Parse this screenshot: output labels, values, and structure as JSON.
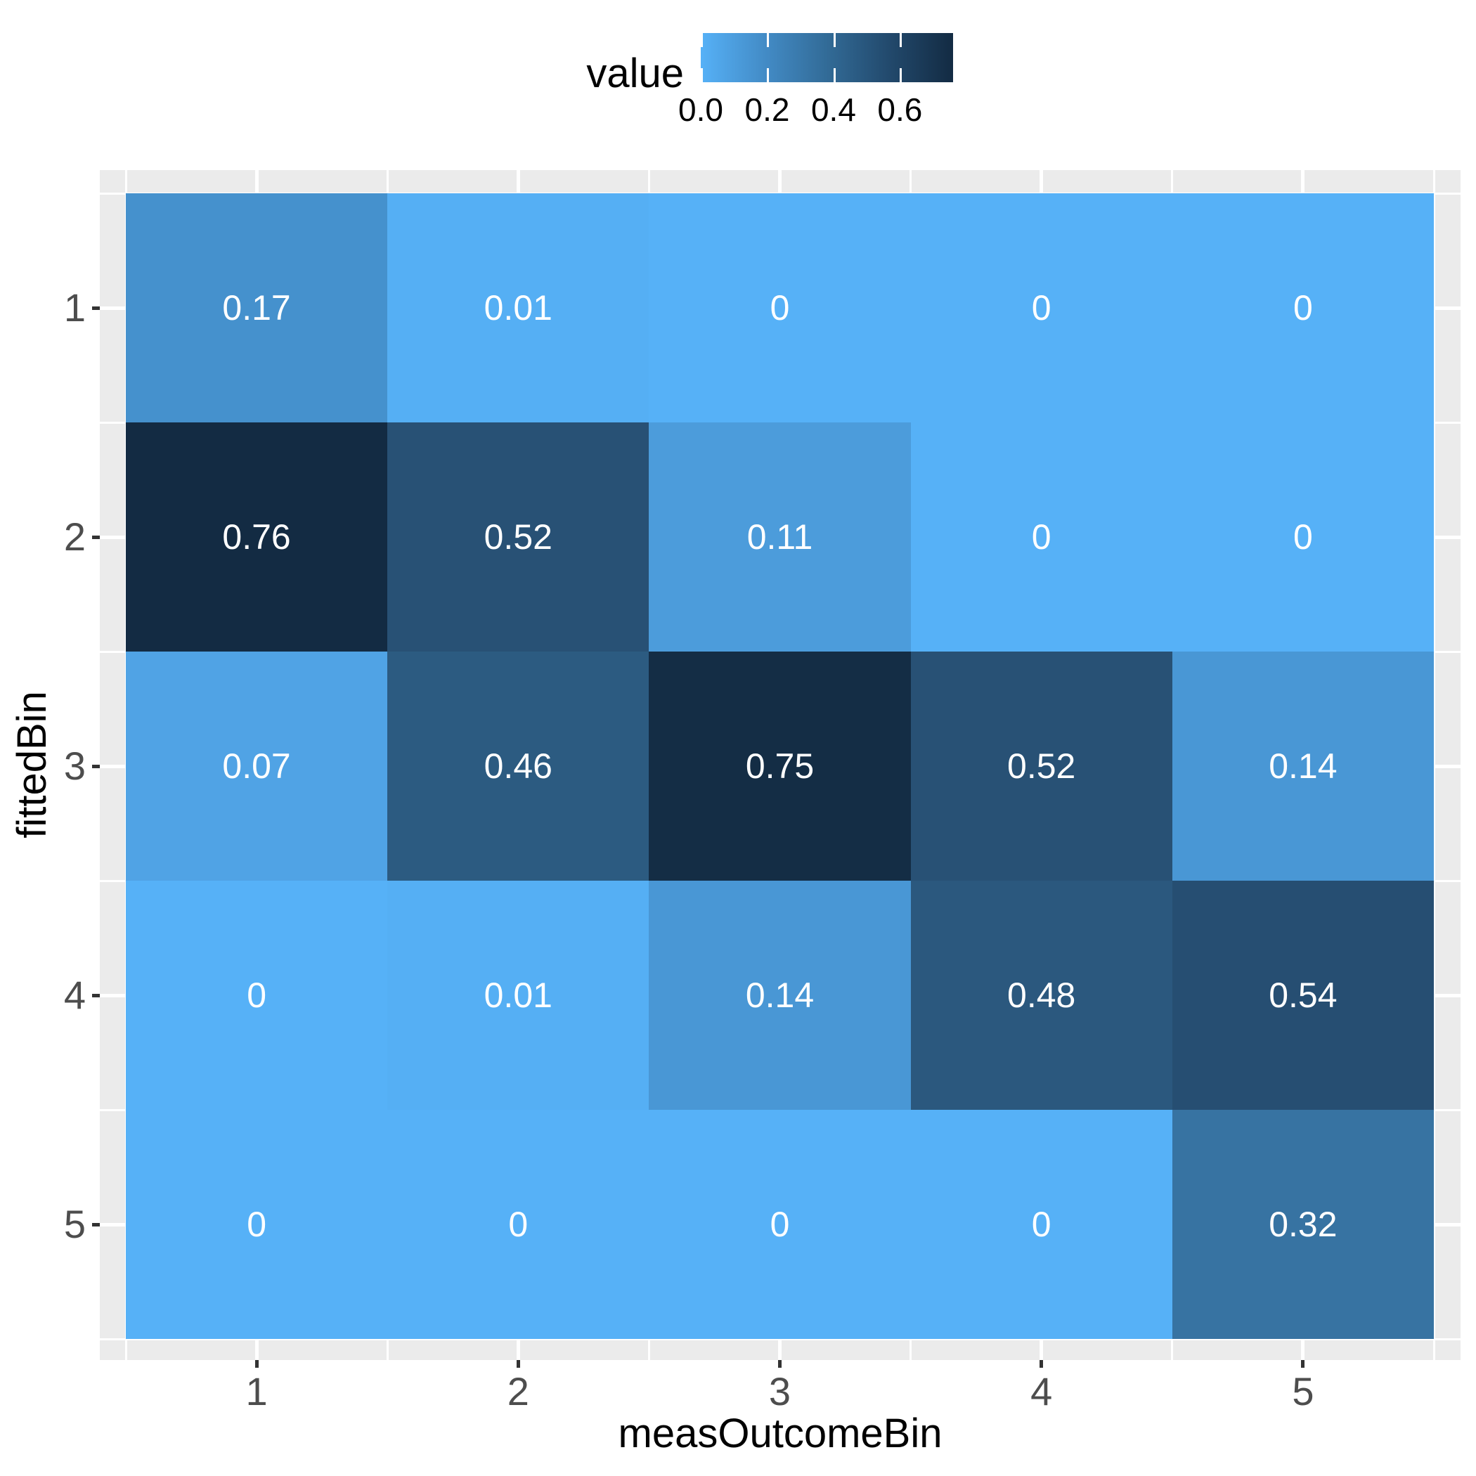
{
  "colors": {
    "figure_background": "#FFFFFF",
    "panel_background": "#EBEBEB",
    "gridline": "#FFFFFF",
    "axis_tick": "#333333",
    "tick_label": "#4D4D4D",
    "axis_title": "#000000",
    "cell_label": "#FFFFFF",
    "gradient_low": "#56B1F7",
    "gradient_high": "#132B43",
    "gradient_stops": [
      "#56B1F7",
      "#438CC7",
      "#326B97",
      "#22496C",
      "#132B43"
    ]
  },
  "legend": {
    "title": "value",
    "tick_labels": [
      "0.0",
      "0.2",
      "0.4",
      "0.6"
    ]
  },
  "axes": {
    "x": {
      "title": "measOutcomeBin",
      "tick_labels": [
        "1",
        "2",
        "3",
        "4",
        "5"
      ]
    },
    "y": {
      "title": "fittedBin",
      "tick_labels": [
        "1",
        "2",
        "3",
        "4",
        "5"
      ]
    }
  },
  "chart_data": {
    "type": "heatmap",
    "title": "",
    "xlabel": "measOutcomeBin",
    "ylabel": "fittedBin",
    "x_categories": [
      "1",
      "2",
      "3",
      "4",
      "5"
    ],
    "y_categories": [
      "1",
      "2",
      "3",
      "4",
      "5"
    ],
    "values": [
      [
        0.17,
        0.01,
        0,
        0,
        0
      ],
      [
        0.76,
        0.52,
        0.11,
        0,
        0
      ],
      [
        0.07,
        0.46,
        0.75,
        0.52,
        0.14
      ],
      [
        0,
        0.01,
        0.14,
        0.48,
        0.54
      ],
      [
        0,
        0,
        0,
        0,
        0.32
      ]
    ],
    "cell_labels": [
      [
        "0.17",
        "0.01",
        "0",
        "0",
        "0"
      ],
      [
        "0.76",
        "0.52",
        "0.11",
        "0",
        "0"
      ],
      [
        "0.07",
        "0.46",
        "0.75",
        "0.52",
        "0.14"
      ],
      [
        "0",
        "0.01",
        "0.14",
        "0.48",
        "0.54"
      ],
      [
        "0",
        "0",
        "0",
        "0",
        "0.32"
      ]
    ],
    "cell_colors": [
      [
        "#4591CD",
        "#55AFF4",
        "#56B1F7",
        "#56B1F7",
        "#56B1F7"
      ],
      [
        "#132B43",
        "#285175",
        "#4C9CDB",
        "#56B1F7",
        "#56B1F7"
      ],
      [
        "#50A3E5",
        "#2C5B81",
        "#142D45",
        "#285175",
        "#4997D5"
      ],
      [
        "#56B1F7",
        "#55AFF4",
        "#4997D5",
        "#2B587E",
        "#264E72"
      ],
      [
        "#56B1F7",
        "#56B1F7",
        "#56B1F7",
        "#56B1F7",
        "#3773A2"
      ]
    ],
    "legend": {
      "title": "value",
      "tick_values": [
        0.0,
        0.2,
        0.4,
        0.6
      ],
      "range": [
        0,
        0.76
      ],
      "position": "top",
      "orientation": "horizontal"
    },
    "grid": "on"
  }
}
